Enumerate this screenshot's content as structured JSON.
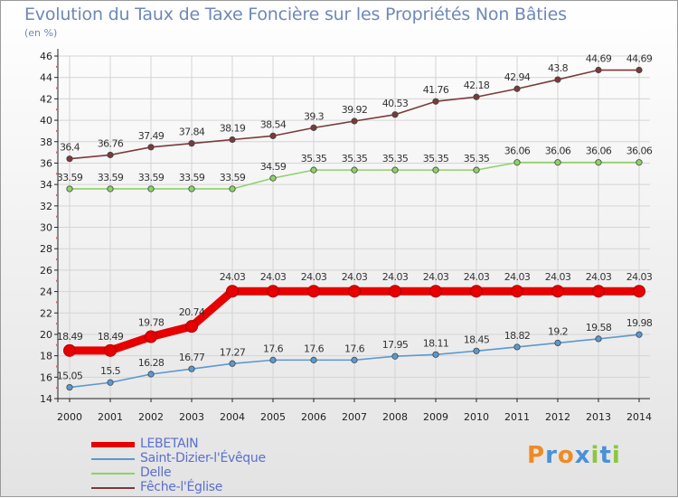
{
  "header": {
    "title": "Evolution du Taux de Taxe Foncière sur les Propriétés Non Bâties",
    "unit": "(en %)"
  },
  "logo": {
    "letters": [
      "P",
      "r",
      "o",
      "x",
      "i",
      "t",
      "i"
    ],
    "colors": [
      "#f08a24",
      "#4a90d9",
      "#f08a24",
      "#4a90d9",
      "#8cc63f",
      "#4a90d9",
      "#8cc63f"
    ]
  },
  "chart_data": {
    "type": "line",
    "x": [
      "2000",
      "2001",
      "2002",
      "2003",
      "2004",
      "2005",
      "2006",
      "2007",
      "2008",
      "2009",
      "2010",
      "2011",
      "2012",
      "2013",
      "2014"
    ],
    "ylim": [
      14,
      46
    ],
    "yticks": [
      "14",
      "16",
      "18",
      "20",
      "22",
      "24",
      "26",
      "28",
      "30",
      "32",
      "34",
      "36",
      "38",
      "40",
      "42",
      "44",
      "46"
    ],
    "grid": true,
    "legend_position": "bottom-left",
    "series": [
      {
        "name": "LEBETAIN",
        "color": "#e60000",
        "values": [
          18.49,
          18.49,
          19.78,
          20.74,
          24.03,
          24.03,
          24.03,
          24.03,
          24.03,
          24.03,
          24.03,
          24.03,
          24.03,
          24.03,
          24.03
        ],
        "labels": [
          "18.49",
          "18.49",
          "19.78",
          "20.74",
          "24.03",
          "24.03",
          "24.03",
          "24.03",
          "24.03",
          "24.03",
          "24.03",
          "24.03",
          "24.03",
          "24.03",
          "24.03"
        ]
      },
      {
        "name": "Saint-Dizier-l'Évêque",
        "color": "#5b98d0",
        "values": [
          15.05,
          15.5,
          16.28,
          16.77,
          17.27,
          17.6,
          17.6,
          17.6,
          17.95,
          18.11,
          18.45,
          18.82,
          19.2,
          19.58,
          19.98
        ],
        "labels": [
          "15.05",
          "15.5",
          "16.28",
          "16.77",
          "17.27",
          "17.6",
          "17.6",
          "17.6",
          "17.95",
          "18.11",
          "18.45",
          "18.82",
          "19.2",
          "19.58",
          "19.98"
        ]
      },
      {
        "name": "Delle",
        "color": "#8fd16a",
        "values": [
          33.59,
          33.59,
          33.59,
          33.59,
          33.59,
          34.59,
          35.35,
          35.35,
          35.35,
          35.35,
          35.35,
          36.06,
          36.06,
          36.06,
          36.06
        ],
        "labels": [
          "33.59",
          "33.59",
          "33.59",
          "33.59",
          "33.59",
          "34.59",
          "35.35",
          "35.35",
          "35.35",
          "35.35",
          "35.35",
          "36.06",
          "36.06",
          "36.06",
          "36.06"
        ]
      },
      {
        "name": "Fêche-l'Église",
        "color": "#7a3a3a",
        "values": [
          36.4,
          36.76,
          37.49,
          37.84,
          38.19,
          38.54,
          39.3,
          39.92,
          40.53,
          41.76,
          42.18,
          42.94,
          43.8,
          44.69,
          44.69
        ],
        "labels": [
          "36.4",
          "36.76",
          "37.49",
          "37.84",
          "38.19",
          "38.54",
          "39.3",
          "39.92",
          "40.53",
          "41.76",
          "42.18",
          "42.94",
          "43.8",
          "44.69",
          "44.69"
        ]
      }
    ]
  }
}
